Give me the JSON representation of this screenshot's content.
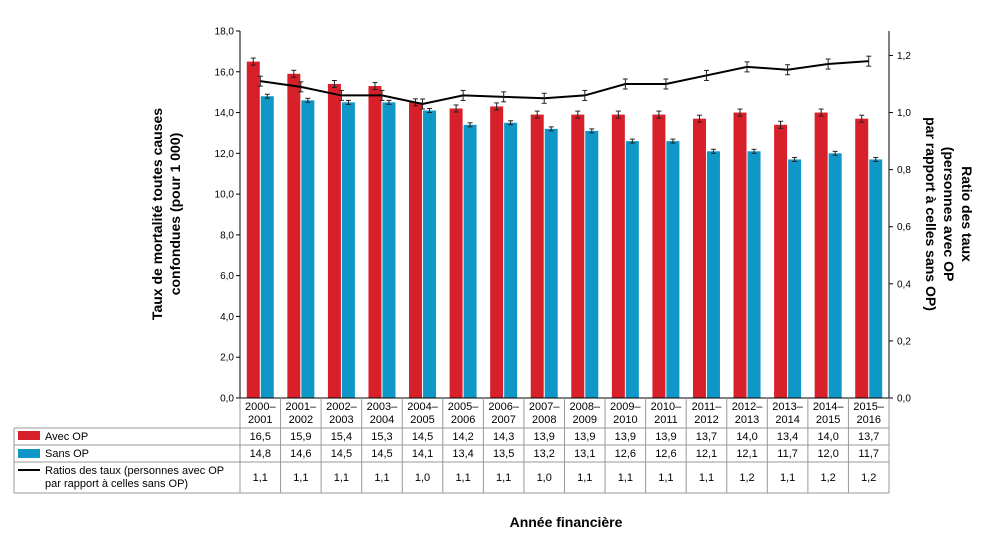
{
  "chart_data": {
    "type": "bar",
    "xlabel": "Année financière",
    "ylabel": "Taux de mortalité toutes causes confondues (pour 1 000)",
    "ylabel_lines": [
      "Taux de mortalité toutes causes",
      "confondues (pour 1 000)"
    ],
    "y2label": "Ratio des taux (personnes avec OP par rapport à celles sans OP)",
    "y2label_lines": [
      "Ratio des taux",
      "(personnes avec OP",
      "par rapport à celles sans OP)"
    ],
    "ylim": [
      0,
      18
    ],
    "y2lim": [
      0,
      1.2857
    ],
    "yticks": [
      "0,0",
      "2,0",
      "4,0",
      "6,0",
      "8,0",
      "10,0",
      "12,0",
      "14,0",
      "16,0",
      "18,0"
    ],
    "y2ticks": [
      "0,0",
      "0,2",
      "0,4",
      "0,6",
      "0,8",
      "1,0",
      "1,2"
    ],
    "categories": [
      [
        "2000–",
        "2001"
      ],
      [
        "2001–",
        "2002"
      ],
      [
        "2002–",
        "2003"
      ],
      [
        "2003–",
        "2004"
      ],
      [
        "2004–",
        "2005"
      ],
      [
        "2005–",
        "2006"
      ],
      [
        "2006–",
        "2007"
      ],
      [
        "2007–",
        "2008"
      ],
      [
        "2008–",
        "2009"
      ],
      [
        "2009–",
        "2010"
      ],
      [
        "2010–",
        "2011"
      ],
      [
        "2011–",
        "2012"
      ],
      [
        "2012–",
        "2013"
      ],
      [
        "2013–",
        "2014"
      ],
      [
        "2014–",
        "2015"
      ],
      [
        "2015–",
        "2016"
      ]
    ],
    "series": [
      {
        "name": "Avec OP",
        "type": "bar",
        "color": "#d7202a",
        "values": [
          16.5,
          15.9,
          15.4,
          15.3,
          14.5,
          14.2,
          14.3,
          13.9,
          13.9,
          13.9,
          13.9,
          13.7,
          14.0,
          13.4,
          14.0,
          13.7
        ],
        "labels": [
          "16,5",
          "15,9",
          "15,4",
          "15,3",
          "14,5",
          "14,2",
          "14,3",
          "13,9",
          "13,9",
          "13,9",
          "13,9",
          "13,7",
          "14,0",
          "13,4",
          "14,0",
          "13,7"
        ]
      },
      {
        "name": "Sans OP",
        "type": "bar",
        "color": "#0f97c7",
        "values": [
          14.8,
          14.6,
          14.5,
          14.5,
          14.1,
          13.4,
          13.5,
          13.2,
          13.1,
          12.6,
          12.6,
          12.1,
          12.1,
          11.7,
          12.0,
          11.7
        ],
        "labels": [
          "14,8",
          "14,6",
          "14,5",
          "14,5",
          "14,1",
          "13,4",
          "13,5",
          "13,2",
          "13,1",
          "12,6",
          "12,6",
          "12,1",
          "12,1",
          "11,7",
          "12,0",
          "11,7"
        ]
      },
      {
        "name": "Ratios des taux (personnes avec OP par rapport à celles sans OP)",
        "name_lines": [
          "Ratios des taux (personnes avec OP",
          "par rapport à celles sans OP)"
        ],
        "type": "line",
        "axis": "right",
        "color": "#000000",
        "values": [
          1.11,
          1.09,
          1.06,
          1.06,
          1.03,
          1.06,
          1.055,
          1.05,
          1.06,
          1.1,
          1.1,
          1.13,
          1.16,
          1.15,
          1.17,
          1.18
        ],
        "labels": [
          "1,1",
          "1,1",
          "1,1",
          "1,1",
          "1,0",
          "1,1",
          "1,1",
          "1,0",
          "1,1",
          "1,1",
          "1,1",
          "1,1",
          "1,2",
          "1,1",
          "1,2",
          "1,2"
        ]
      }
    ],
    "error_bars": true,
    "grid": false,
    "legend": "data-table"
  }
}
